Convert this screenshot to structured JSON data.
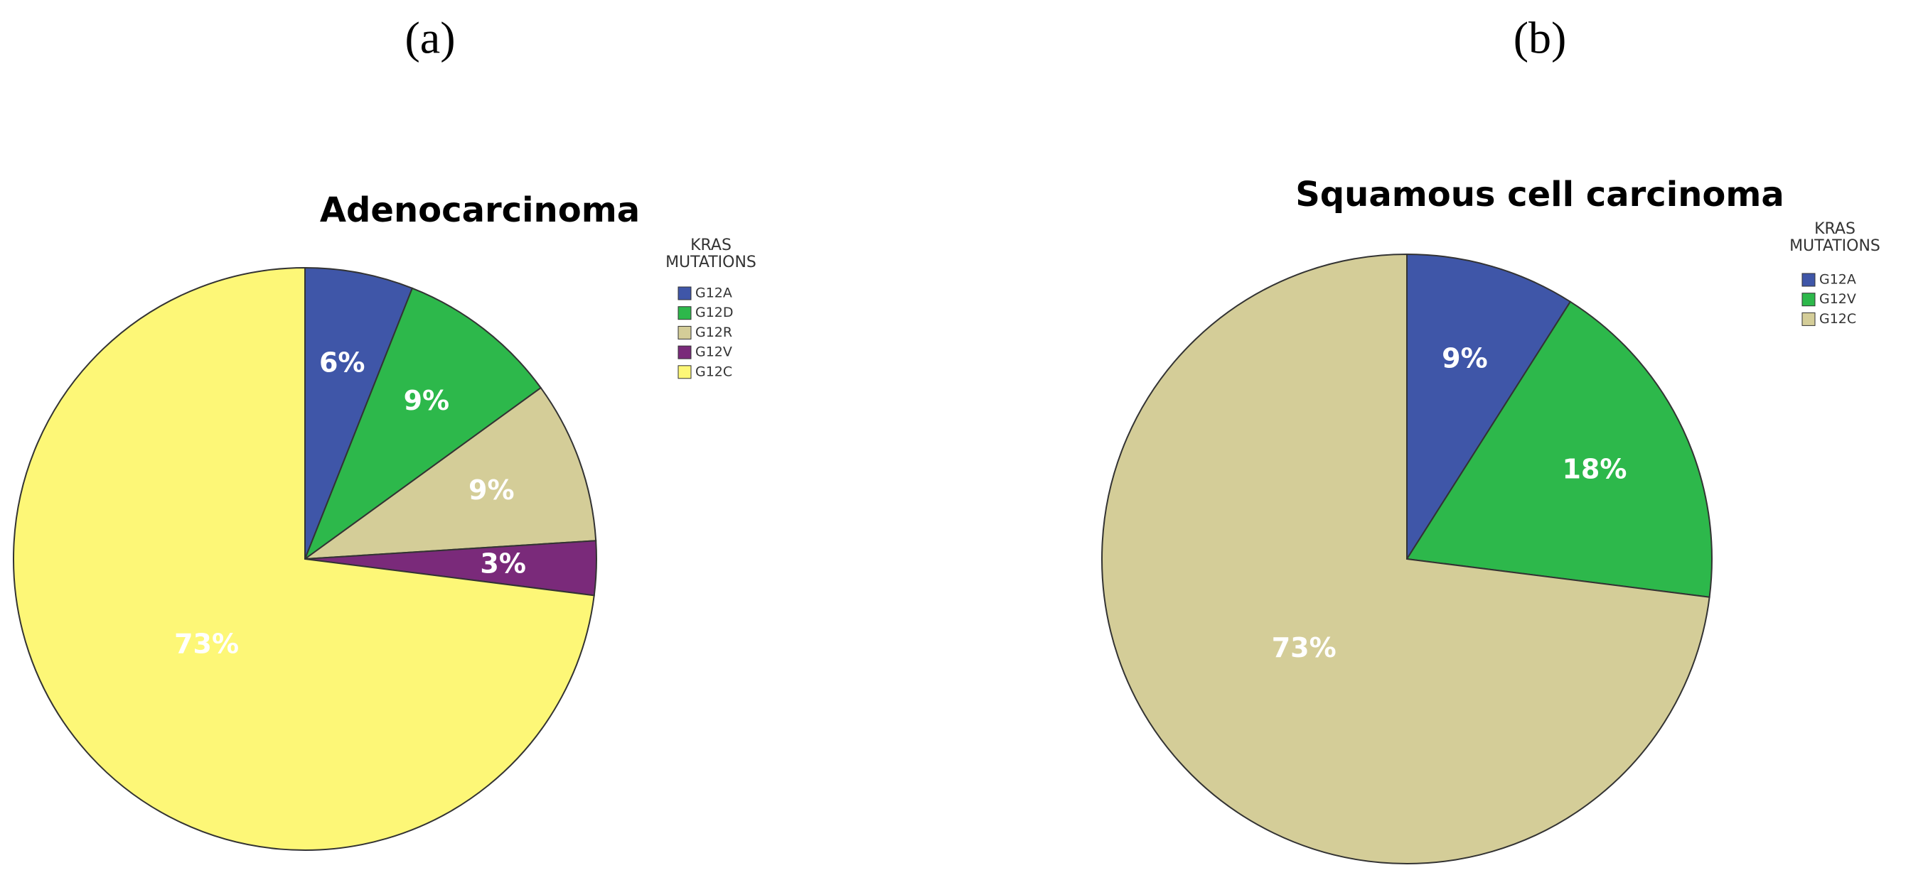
{
  "chart_data": [
    {
      "type": "pie",
      "panel": "(a)",
      "title": "Adenocarcinoma",
      "legend_title": [
        "KRAS",
        "MUTATIONS"
      ],
      "categories": [
        "G12A",
        "G12D",
        "G12R",
        "G12V",
        "G12C"
      ],
      "values": [
        6,
        9,
        9,
        3,
        73
      ],
      "value_labels": [
        "6%",
        "9%",
        "9%",
        "3%",
        "73%"
      ],
      "colors": [
        "#3f56a8",
        "#2db84b",
        "#d4cd98",
        "#7a2a7a",
        "#fdf777"
      ]
    },
    {
      "type": "pie",
      "panel": "(b)",
      "title": "Squamous cell carcinoma",
      "legend_title": [
        "KRAS",
        "MUTATIONS"
      ],
      "categories": [
        "G12A",
        "G12V",
        "G12C"
      ],
      "values": [
        9,
        18,
        73
      ],
      "value_labels": [
        "9%",
        "18%",
        "73%"
      ],
      "colors": [
        "#3f56a8",
        "#2db84b",
        "#d4cd98"
      ]
    }
  ]
}
